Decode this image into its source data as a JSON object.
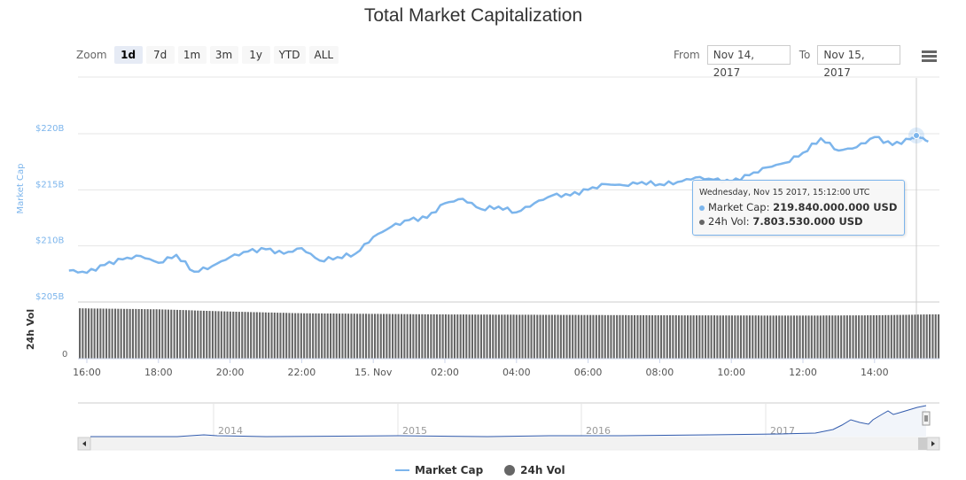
{
  "title": "Total Market Capitalization",
  "zoom": {
    "label": "Zoom",
    "buttons": [
      {
        "label": "1d",
        "active": true
      },
      {
        "label": "7d",
        "active": false
      },
      {
        "label": "1m",
        "active": false
      },
      {
        "label": "3m",
        "active": false
      },
      {
        "label": "1y",
        "active": false
      },
      {
        "label": "YTD",
        "active": false
      },
      {
        "label": "ALL",
        "active": false
      }
    ]
  },
  "range": {
    "from_label": "From",
    "from_value": "Nov 14, 2017",
    "to_label": "To",
    "to_value": "Nov 15, 2017"
  },
  "menu_icon": "hamburger-menu-icon",
  "tooltip": {
    "header": "Wednesday, Nov 15 2017, 15:12:00 UTC",
    "market_cap_label": "Market Cap: ",
    "market_cap_value": "219.840.000.000 USD",
    "vol_label": "24h Vol: ",
    "vol_value": "7.803.530.000 USD"
  },
  "legend": {
    "market_cap": "Market Cap",
    "vol": "24h Vol"
  },
  "colors": {
    "market_cap": "#7cb5ec",
    "vol": "#666666",
    "navigator_line": "#335cad"
  },
  "chart_data": {
    "type": "line",
    "title": "Total Market Capitalization",
    "xlabel": "",
    "ylabel": "Market Cap",
    "ylabel2": "24h Vol",
    "yticks": [
      "$205B",
      "$210B",
      "$215B",
      "$220B"
    ],
    "ylim": [
      205,
      225
    ],
    "y2ticks": [
      "0"
    ],
    "xticks": [
      "16:00",
      "18:00",
      "20:00",
      "22:00",
      "15. Nov",
      "02:00",
      "04:00",
      "06:00",
      "08:00",
      "10:00",
      "12:00",
      "14:00"
    ],
    "navigator_labels": [
      "2014",
      "2015",
      "2016",
      "2017"
    ],
    "series": [
      {
        "name": "Market Cap",
        "unit": "USD billions",
        "x": [
          "15:30",
          "16:00",
          "16:30",
          "17:00",
          "17:30",
          "18:00",
          "18:30",
          "19:00",
          "19:30",
          "20:00",
          "20:30",
          "21:00",
          "21:30",
          "22:00",
          "22:30",
          "23:00",
          "23:30",
          "00:00",
          "00:30",
          "01:00",
          "01:30",
          "02:00",
          "02:30",
          "03:00",
          "03:30",
          "04:00",
          "04:30",
          "05:00",
          "05:30",
          "06:00",
          "06:30",
          "07:00",
          "07:30",
          "08:00",
          "08:30",
          "09:00",
          "09:30",
          "10:00",
          "10:30",
          "11:00",
          "11:30",
          "12:00",
          "12:30",
          "13:00",
          "13:30",
          "14:00",
          "14:30",
          "15:00",
          "15:12",
          "15:30"
        ],
        "values": [
          207.8,
          207.6,
          208.3,
          208.8,
          209.1,
          208.5,
          209.2,
          207.7,
          208.2,
          209.0,
          209.5,
          209.7,
          209.3,
          209.8,
          208.7,
          209.0,
          209.3,
          210.8,
          211.7,
          212.3,
          212.5,
          213.8,
          214.2,
          213.3,
          213.5,
          213.0,
          213.8,
          214.5,
          214.5,
          215.0,
          215.5,
          215.4,
          215.7,
          215.5,
          215.7,
          216.1,
          215.9,
          215.7,
          216.3,
          217.0,
          217.4,
          218.3,
          219.6,
          218.5,
          218.8,
          219.7,
          219.0,
          219.5,
          219.84,
          219.3
        ]
      },
      {
        "name": "24h Vol",
        "unit": "USD billions",
        "x": [
          "15:30",
          "18:00",
          "20:00",
          "22:00",
          "00:00",
          "02:00",
          "04:00",
          "06:00",
          "08:00",
          "10:00",
          "12:00",
          "14:00",
          "15:30"
        ],
        "values": [
          8.9,
          8.7,
          8.3,
          8.0,
          7.9,
          7.8,
          7.75,
          7.7,
          7.65,
          7.62,
          7.6,
          7.65,
          7.8
        ]
      }
    ],
    "highlight": {
      "x": "15:12",
      "market_cap": 219.84,
      "vol": 7.80353
    },
    "grid": true,
    "legend_position": "bottom"
  }
}
